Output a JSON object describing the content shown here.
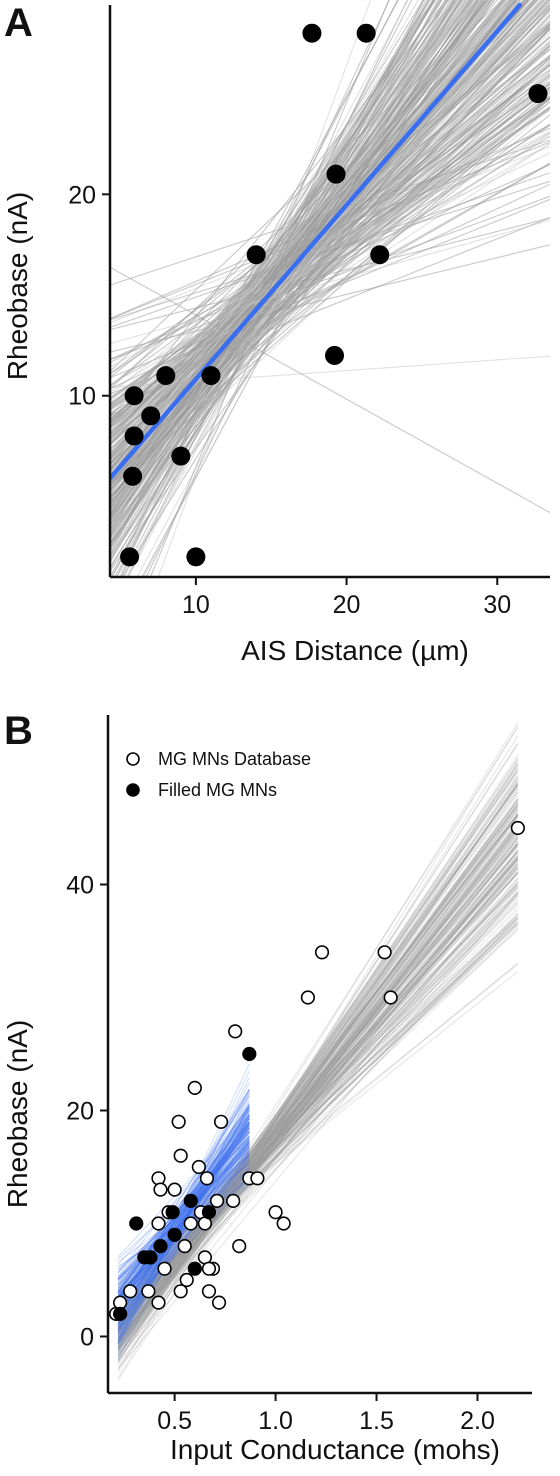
{
  "figure": {
    "panel_a_letter": "A",
    "panel_b_letter": "B"
  },
  "chart_data": [
    {
      "type": "scatter",
      "panel": "A",
      "xlabel": "AIS Distance (µm)",
      "ylabel": "Rheobase (nA)",
      "xlim": [
        4.3,
        33.5
      ],
      "ylim": [
        1,
        29.4
      ],
      "xticks": [
        10,
        20,
        30
      ],
      "yticks": [
        10,
        20
      ],
      "points": [
        {
          "x": 5.6,
          "y": 2
        },
        {
          "x": 10.0,
          "y": 2
        },
        {
          "x": 5.8,
          "y": 6
        },
        {
          "x": 9.0,
          "y": 7
        },
        {
          "x": 5.9,
          "y": 8
        },
        {
          "x": 7.0,
          "y": 9
        },
        {
          "x": 5.9,
          "y": 10
        },
        {
          "x": 8.0,
          "y": 11
        },
        {
          "x": 11.0,
          "y": 11
        },
        {
          "x": 19.2,
          "y": 12
        },
        {
          "x": 14.0,
          "y": 17
        },
        {
          "x": 22.2,
          "y": 17
        },
        {
          "x": 19.3,
          "y": 21
        },
        {
          "x": 17.7,
          "y": 28
        },
        {
          "x": 21.3,
          "y": 28
        },
        {
          "x": 32.7,
          "y": 25
        }
      ],
      "regression_line": {
        "x": [
          4.3,
          31.5
        ],
        "y": [
          5.9,
          29.4
        ],
        "color": "#3a6ef0"
      },
      "bootstrap_lines_color": "#9a9a9a",
      "point_color": "#000000"
    },
    {
      "type": "scatter",
      "panel": "B",
      "xlabel": "Input Conductance (mohs)",
      "ylabel": "Rheobase (nA)",
      "xlim": [
        0.17,
        2.27
      ],
      "ylim": [
        -5,
        55
      ],
      "xticks": [
        0.5,
        1.0,
        1.5,
        2.0
      ],
      "xtick_labels": [
        "0.5",
        "1.0",
        "1.5",
        "2.0"
      ],
      "yticks": [
        0,
        20,
        40
      ],
      "legend": {
        "position": "top-left",
        "entries": [
          {
            "label": "MG MNs Database",
            "marker": "open-circle"
          },
          {
            "label": "Filled MG MNs",
            "marker": "filled-circle"
          }
        ]
      },
      "series": [
        {
          "name": "MG MNs Database",
          "marker": "open-circle",
          "points": [
            {
              "x": 0.21,
              "y": 2
            },
            {
              "x": 0.23,
              "y": 3
            },
            {
              "x": 0.28,
              "y": 4
            },
            {
              "x": 0.37,
              "y": 4
            },
            {
              "x": 0.38,
              "y": 7
            },
            {
              "x": 0.42,
              "y": 3
            },
            {
              "x": 0.45,
              "y": 6
            },
            {
              "x": 0.53,
              "y": 4
            },
            {
              "x": 0.56,
              "y": 5
            },
            {
              "x": 0.65,
              "y": 7
            },
            {
              "x": 0.67,
              "y": 4
            },
            {
              "x": 0.69,
              "y": 6
            },
            {
              "x": 0.72,
              "y": 3
            },
            {
              "x": 0.67,
              "y": 6
            },
            {
              "x": 0.42,
              "y": 10
            },
            {
              "x": 0.47,
              "y": 11
            },
            {
              "x": 0.5,
              "y": 13
            },
            {
              "x": 0.42,
              "y": 14
            },
            {
              "x": 0.43,
              "y": 13
            },
            {
              "x": 0.55,
              "y": 8
            },
            {
              "x": 0.58,
              "y": 10
            },
            {
              "x": 0.63,
              "y": 11
            },
            {
              "x": 0.65,
              "y": 10
            },
            {
              "x": 0.62,
              "y": 15
            },
            {
              "x": 0.66,
              "y": 14
            },
            {
              "x": 0.71,
              "y": 12
            },
            {
              "x": 0.53,
              "y": 16
            },
            {
              "x": 0.52,
              "y": 19
            },
            {
              "x": 0.73,
              "y": 19
            },
            {
              "x": 0.6,
              "y": 22
            },
            {
              "x": 0.79,
              "y": 12
            },
            {
              "x": 0.82,
              "y": 8
            },
            {
              "x": 0.87,
              "y": 14
            },
            {
              "x": 0.91,
              "y": 14
            },
            {
              "x": 1.0,
              "y": 11
            },
            {
              "x": 1.04,
              "y": 10
            },
            {
              "x": 0.8,
              "y": 27
            },
            {
              "x": 1.16,
              "y": 30
            },
            {
              "x": 1.23,
              "y": 34
            },
            {
              "x": 1.54,
              "y": 34
            },
            {
              "x": 1.57,
              "y": 30
            },
            {
              "x": 2.2,
              "y": 45
            }
          ]
        },
        {
          "name": "Filled MG MNs",
          "marker": "filled-circle",
          "points": [
            {
              "x": 0.23,
              "y": 2
            },
            {
              "x": 0.31,
              "y": 10
            },
            {
              "x": 0.35,
              "y": 7
            },
            {
              "x": 0.38,
              "y": 7
            },
            {
              "x": 0.43,
              "y": 8
            },
            {
              "x": 0.49,
              "y": 11
            },
            {
              "x": 0.5,
              "y": 9
            },
            {
              "x": 0.58,
              "y": 12
            },
            {
              "x": 0.6,
              "y": 6
            },
            {
              "x": 0.67,
              "y": 11
            },
            {
              "x": 0.87,
              "y": 25
            }
          ]
        }
      ],
      "blue_fan_color": "#3a6ef0",
      "gray_fan_color": "#9a9a9a"
    }
  ]
}
